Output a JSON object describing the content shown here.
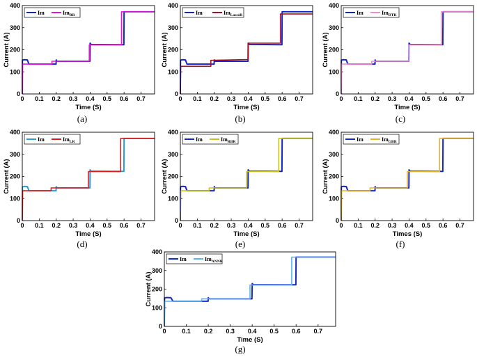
{
  "chart_data": [
    {
      "id": "a",
      "type": "line",
      "caption": "(a)",
      "xlabel": "Time (S)",
      "ylabel": "Current (A)",
      "xlim": [
        0,
        0.78
      ],
      "ylim": [
        0,
        400
      ],
      "xticks": [
        "0",
        "0.1",
        "0.2",
        "0.3",
        "0.4",
        "0.5",
        "0.6",
        "0.7"
      ],
      "yticks": [
        "0",
        "100",
        "200",
        "300",
        "400"
      ],
      "legend_position": "top-left",
      "series": [
        {
          "name": "Im",
          "sub": "",
          "color": "#1526c8",
          "kind": "im"
        },
        {
          "name": "Im",
          "sub": "RR",
          "color": "#e018d6",
          "kind": "pred",
          "offset": 0,
          "lead": 0.005
        }
      ]
    },
    {
      "id": "b",
      "type": "line",
      "caption": "(b)",
      "xlabel": "Time (S)",
      "ylabel": "Current (A)",
      "xlim": [
        0,
        0.78
      ],
      "ylim": [
        0,
        400
      ],
      "xticks": [
        "0",
        "0.1",
        "0.2",
        "0.3",
        "0.4",
        "0.5",
        "0.6",
        "0.7"
      ],
      "yticks": [
        "0",
        "100",
        "200",
        "300",
        "400"
      ],
      "legend_position": "top-left",
      "series": [
        {
          "name": "Im",
          "sub": "",
          "color": "#1526c8",
          "kind": "im"
        },
        {
          "name": "Im",
          "sub": "LassoR",
          "color": "#a3122a",
          "kind": "pred",
          "offset": 8,
          "lead": 0.0,
          "low": 125
        }
      ]
    },
    {
      "id": "c",
      "type": "line",
      "caption": "(c)",
      "xlabel": "Time (S)",
      "ylabel": "Current (A)",
      "xlim": [
        0,
        0.78
      ],
      "ylim": [
        0,
        400
      ],
      "xticks": [
        "0",
        "0.1",
        "0.2",
        "0.3",
        "0.4",
        "0.5",
        "0.6",
        "0.7"
      ],
      "yticks": [
        "0",
        "100",
        "200",
        "300",
        "400"
      ],
      "legend_position": "top-left",
      "series": [
        {
          "name": "Im",
          "sub": "",
          "color": "#1526c8",
          "kind": "im"
        },
        {
          "name": "Im",
          "sub": "DTR",
          "color": "#f48bc8",
          "kind": "pred",
          "offset": 0,
          "lead": 0.0
        }
      ]
    },
    {
      "id": "d",
      "type": "line",
      "caption": "(d)",
      "xlabel": "Time (S)",
      "ylabel": "Current (A)",
      "xlim": [
        0,
        0.78
      ],
      "ylim": [
        0,
        400
      ],
      "xticks": [
        "0",
        "0.1",
        "0.2",
        "0.3",
        "0.4",
        "0.5",
        "0.6",
        "0.7"
      ],
      "yticks": [
        "0",
        "100",
        "200",
        "300",
        "400"
      ],
      "legend_position": "top-left",
      "series": [
        {
          "name": "Im",
          "sub": "",
          "color": "#2a9ad8",
          "kind": "im"
        },
        {
          "name": "Im",
          "sub": "LR",
          "color": "#e01818",
          "kind": "pred",
          "offset": 0,
          "lead": 0.01
        }
      ]
    },
    {
      "id": "e",
      "type": "line",
      "caption": "(e)",
      "xlabel": "Time (S)",
      "ylabel": "Current (A)",
      "xlim": [
        0,
        0.78
      ],
      "ylim": [
        0,
        400
      ],
      "xticks": [
        "0",
        "0.1",
        "0.2",
        "0.3",
        "0.4",
        "0.5",
        "0.6",
        "0.7"
      ],
      "yticks": [
        "0",
        "100",
        "200",
        "300",
        "400"
      ],
      "legend_position": "top-left",
      "series": [
        {
          "name": "Im",
          "sub": "",
          "color": "#1526c8",
          "kind": "im"
        },
        {
          "name": "Im",
          "sub": "RBR",
          "color": "#c8c41a",
          "kind": "pred",
          "offset": 0,
          "lead": 0.01
        }
      ]
    },
    {
      "id": "f",
      "type": "line",
      "caption": "(f)",
      "xlabel": "Times (S)",
      "ylabel": "Current (A)",
      "xlim": [
        0,
        0.78
      ],
      "ylim": [
        0,
        400
      ],
      "xticks": [
        "0",
        "0.1",
        "0.2",
        "0.3",
        "0.4",
        "0.5",
        "0.6",
        "0.7"
      ],
      "yticks": [
        "0",
        "100",
        "200",
        "300",
        "400"
      ],
      "legend_position": "top-left",
      "series": [
        {
          "name": "Im",
          "sub": "",
          "color": "#1526c8",
          "kind": "im"
        },
        {
          "name": "Im",
          "sub": "GBR",
          "color": "#e6b428",
          "kind": "pred",
          "offset": 0,
          "lead": 0.01
        }
      ]
    },
    {
      "id": "g",
      "type": "line",
      "caption": "(g)",
      "xlabel": "Time (S)",
      "ylabel": "Current (A)",
      "xlim": [
        0,
        0.78
      ],
      "ylim": [
        0,
        400
      ],
      "xticks": [
        "0",
        "0.1",
        "0.2",
        "0.3",
        "0.4",
        "0.5",
        "0.6",
        "0.7"
      ],
      "yticks": [
        "0",
        "100",
        "200",
        "300",
        "400"
      ],
      "legend_position": "top-left",
      "series": [
        {
          "name": "Im",
          "sub": "",
          "color": "#1526c8",
          "kind": "im"
        },
        {
          "name": "Im",
          "sub": "ANNR",
          "color": "#5ab4ea",
          "kind": "pred",
          "offset": 0,
          "lead": 0.01
        }
      ]
    }
  ],
  "im_profile": {
    "steps_t": [
      0,
      0.2,
      0.4,
      0.6
    ],
    "steps_v": [
      135,
      148,
      222,
      372
    ],
    "initial_hump": 155
  }
}
